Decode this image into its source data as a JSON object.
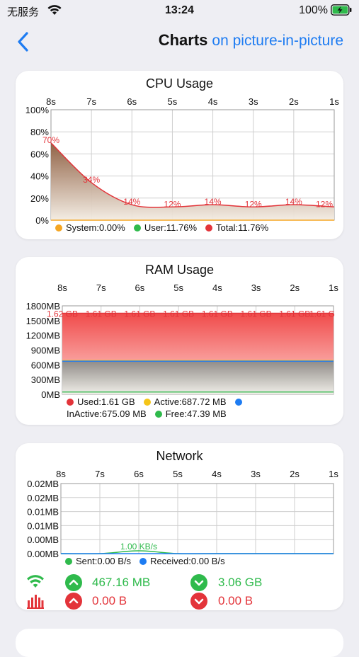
{
  "status_bar": {
    "carrier": "无服务",
    "time": "13:24",
    "battery": "100%"
  },
  "nav": {
    "title": "Charts",
    "subtitle": "on picture-in-picture"
  },
  "colors": {
    "accent": "#1e7cf2",
    "green": "#2fba4c",
    "red": "#e3343a",
    "yellow": "#f5c518",
    "orange": "#f5a623",
    "blue": "#1e7cf2"
  },
  "chart_data": [
    {
      "type": "area",
      "title": "CPU Usage",
      "x": [
        "8s",
        "7s",
        "6s",
        "5s",
        "4s",
        "3s",
        "2s",
        "1s"
      ],
      "yticks": [
        "100%",
        "80%",
        "60%",
        "40%",
        "20%",
        "0%"
      ],
      "ylim": [
        0,
        100
      ],
      "grid": true,
      "series": [
        {
          "name": "System",
          "values": [
            0,
            0,
            0,
            0,
            0,
            0,
            0,
            0
          ],
          "color": "#f5a623"
        },
        {
          "name": "User",
          "values": [
            70,
            34,
            14,
            12,
            14,
            12,
            14,
            12
          ],
          "color": "#2fba4c"
        },
        {
          "name": "Total",
          "values": [
            70,
            34,
            14,
            12,
            14,
            12,
            14,
            12
          ],
          "color": "#e3343a"
        }
      ],
      "data_labels": [
        "70%",
        "34%",
        "14%",
        "12%",
        "14%",
        "12%",
        "14%",
        "12%"
      ],
      "legend": [
        {
          "label": "System:0.00%",
          "color": "#f5a623"
        },
        {
          "label": "User:11.76%",
          "color": "#2fba4c"
        },
        {
          "label": "Total:11.76%",
          "color": "#e3343a"
        }
      ]
    },
    {
      "type": "area",
      "title": "RAM Usage",
      "x": [
        "8s",
        "7s",
        "6s",
        "5s",
        "4s",
        "3s",
        "2s",
        "1s"
      ],
      "yticks": [
        "1800MB",
        "1500MB",
        "1200MB",
        "900MB",
        "600MB",
        "300MB",
        "0MB"
      ],
      "ylim": [
        0,
        1800
      ],
      "grid": true,
      "series": [
        {
          "name": "Used",
          "values": [
            1650,
            1650,
            1650,
            1650,
            1650,
            1650,
            1650,
            1650
          ],
          "color": "#e3343a"
        },
        {
          "name": "Active",
          "values": [
            688,
            688,
            688,
            688,
            688,
            688,
            688,
            688
          ],
          "color": "#f5c518"
        },
        {
          "name": "InActive",
          "values": [
            675,
            675,
            675,
            675,
            675,
            675,
            675,
            675
          ],
          "color": "#1e7cf2"
        },
        {
          "name": "Free",
          "values": [
            47,
            47,
            47,
            47,
            47,
            47,
            47,
            47
          ],
          "color": "#2fba4c"
        }
      ],
      "data_labels": [
        "1.62 GB",
        "1.61 GB",
        "1.61 GB",
        "1.61 GB",
        "1.61 GB",
        "1.61 GB",
        "1.61 GB",
        "1.61 G"
      ],
      "legend": [
        {
          "label": "Used:1.61 GB",
          "color": "#e3343a"
        },
        {
          "label": "Active:687.72 MB",
          "color": "#f5c518"
        },
        {
          "label": "InActive:675.09 MB",
          "color": "#1e7cf2"
        },
        {
          "label": "Free:47.39 MB",
          "color": "#2fba4c"
        }
      ]
    },
    {
      "type": "area",
      "title": "Network",
      "x": [
        "8s",
        "7s",
        "6s",
        "5s",
        "4s",
        "3s",
        "2s",
        "1s"
      ],
      "yticks": [
        "0.02MB",
        "0.02MB",
        "0.01MB",
        "0.01MB",
        "0.00MB",
        "0.00MB"
      ],
      "ylim": [
        0,
        0.025
      ],
      "grid": true,
      "series": [
        {
          "name": "Sent",
          "values": [
            0,
            0,
            0.001,
            0,
            0,
            0,
            0,
            0
          ],
          "color": "#2fba4c"
        },
        {
          "name": "Received",
          "values": [
            0,
            0,
            0,
            0,
            0,
            0,
            0,
            0
          ],
          "color": "#1e7cf2"
        }
      ],
      "data_labels": [
        "",
        "",
        "1.00 KB/s",
        "",
        "",
        "",
        "",
        ""
      ],
      "legend": [
        {
          "label": "Sent:0.00 B/s",
          "color": "#2fba4c"
        },
        {
          "label": "Received:0.00 B/s",
          "color": "#1e7cf2"
        }
      ]
    }
  ],
  "network_stats": {
    "wifi_received": "467.16 MB",
    "wifi_sent": "0.00 B",
    "cell_received": "3.06 GB",
    "cell_sent": "0.00 B",
    "wifi_icon": "wifi-icon",
    "cellular_icon": "cellular-bars-icon"
  }
}
